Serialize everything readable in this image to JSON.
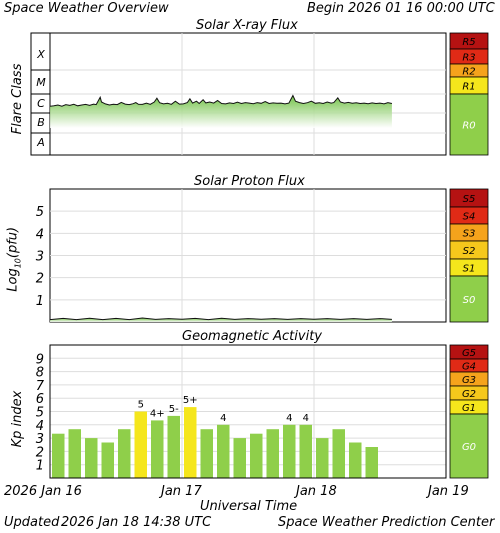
{
  "header": {
    "title": "Space Weather Overview",
    "begin_label": "Begin",
    "begin_value": "2026 01 16 00:00 UTC"
  },
  "footer": {
    "updated_label": "Updated",
    "updated_value": "2026 Jan 18 14:38 UTC",
    "credit": "Space Weather Prediction Center"
  },
  "time_axis": {
    "label": "Universal Time",
    "ticks": [
      {
        "label": "2026 Jan 16",
        "day": 0
      },
      {
        "label": "Jan 17",
        "day": 1
      },
      {
        "label": "Jan 18",
        "day": 2
      },
      {
        "label": "Jan 19",
        "day": 3
      }
    ],
    "range_days": [
      0,
      3
    ]
  },
  "colors": {
    "green": "#8fcf4a",
    "yellow": "#f5e61c",
    "orange": "#f5a31c",
    "red": "#e02a16",
    "dark_red": "#b51212",
    "grid": "#dddddd"
  },
  "chart_data": [
    {
      "type": "area",
      "title": "Solar X-ray Flux",
      "ylabel": "Flare Class",
      "classes": [
        "A",
        "B",
        "C",
        "M",
        "X"
      ],
      "ylim_decades": [
        0,
        5
      ],
      "x_unit": "days since 2026-01-16 00:00 UTC",
      "points": [
        [
          0.0,
          2.35
        ],
        [
          0.03,
          2.38
        ],
        [
          0.06,
          2.42
        ],
        [
          0.09,
          2.36
        ],
        [
          0.12,
          2.44
        ],
        [
          0.15,
          2.4
        ],
        [
          0.18,
          2.46
        ],
        [
          0.21,
          2.38
        ],
        [
          0.24,
          2.42
        ],
        [
          0.27,
          2.45
        ],
        [
          0.3,
          2.4
        ],
        [
          0.33,
          2.47
        ],
        [
          0.35,
          2.44
        ],
        [
          0.38,
          2.83
        ],
        [
          0.39,
          2.58
        ],
        [
          0.42,
          2.48
        ],
        [
          0.45,
          2.42
        ],
        [
          0.48,
          2.46
        ],
        [
          0.51,
          2.44
        ],
        [
          0.54,
          2.56
        ],
        [
          0.57,
          2.47
        ],
        [
          0.6,
          2.44
        ],
        [
          0.63,
          2.49
        ],
        [
          0.65,
          2.55
        ],
        [
          0.67,
          2.46
        ],
        [
          0.7,
          2.45
        ],
        [
          0.73,
          2.52
        ],
        [
          0.76,
          2.46
        ],
        [
          0.79,
          2.58
        ],
        [
          0.81,
          2.78
        ],
        [
          0.83,
          2.54
        ],
        [
          0.86,
          2.48
        ],
        [
          0.89,
          2.51
        ],
        [
          0.92,
          2.46
        ],
        [
          0.95,
          2.62
        ],
        [
          0.98,
          2.47
        ],
        [
          1.01,
          2.48
        ],
        [
          1.04,
          2.55
        ],
        [
          1.06,
          2.75
        ],
        [
          1.08,
          2.52
        ],
        [
          1.11,
          2.62
        ],
        [
          1.13,
          2.5
        ],
        [
          1.16,
          2.7
        ],
        [
          1.18,
          2.53
        ],
        [
          1.21,
          2.58
        ],
        [
          1.24,
          2.52
        ],
        [
          1.27,
          2.66
        ],
        [
          1.3,
          2.5
        ],
        [
          1.33,
          2.48
        ],
        [
          1.36,
          2.53
        ],
        [
          1.39,
          2.5
        ],
        [
          1.42,
          2.57
        ],
        [
          1.45,
          2.5
        ],
        [
          1.48,
          2.55
        ],
        [
          1.51,
          2.52
        ],
        [
          1.54,
          2.49
        ],
        [
          1.57,
          2.55
        ],
        [
          1.6,
          2.51
        ],
        [
          1.63,
          2.6
        ],
        [
          1.66,
          2.5
        ],
        [
          1.69,
          2.53
        ],
        [
          1.72,
          2.51
        ],
        [
          1.75,
          2.52
        ],
        [
          1.78,
          2.48
        ],
        [
          1.81,
          2.52
        ],
        [
          1.84,
          2.92
        ],
        [
          1.86,
          2.62
        ],
        [
          1.89,
          2.55
        ],
        [
          1.92,
          2.5
        ],
        [
          1.95,
          2.54
        ],
        [
          1.98,
          2.62
        ],
        [
          2.01,
          2.51
        ],
        [
          2.04,
          2.54
        ],
        [
          2.07,
          2.5
        ],
        [
          2.1,
          2.58
        ],
        [
          2.13,
          2.52
        ],
        [
          2.15,
          2.55
        ],
        [
          2.18,
          2.8
        ],
        [
          2.2,
          2.58
        ],
        [
          2.23,
          2.52
        ],
        [
          2.26,
          2.56
        ],
        [
          2.29,
          2.51
        ],
        [
          2.32,
          2.54
        ],
        [
          2.35,
          2.5
        ],
        [
          2.38,
          2.52
        ],
        [
          2.41,
          2.49
        ],
        [
          2.44,
          2.53
        ],
        [
          2.47,
          2.5
        ],
        [
          2.5,
          2.52
        ],
        [
          2.53,
          2.48
        ],
        [
          2.56,
          2.55
        ],
        [
          2.59,
          2.5
        ]
      ],
      "scale": [
        {
          "label": "R5",
          "color": "#b51212"
        },
        {
          "label": "R3",
          "color": "#e02a16"
        },
        {
          "label": "R2",
          "color": "#f5a31c"
        },
        {
          "label": "R1",
          "color": "#f5e61c"
        },
        {
          "label": "R0",
          "color": "#8fcf4a"
        }
      ]
    },
    {
      "type": "area",
      "title": "Solar Proton Flux",
      "ylabel": "Log",
      "ylabel_sub": "10",
      "ylabel_suffix": "(pfu)",
      "ylim": [
        0,
        6
      ],
      "y_ticks": [
        1,
        2,
        3,
        4,
        5
      ],
      "points": [
        [
          0.0,
          0.12
        ],
        [
          0.1,
          0.13
        ],
        [
          0.2,
          0.12
        ],
        [
          0.3,
          0.14
        ],
        [
          0.4,
          0.12
        ],
        [
          0.5,
          0.13
        ],
        [
          0.6,
          0.12
        ],
        [
          0.7,
          0.15
        ],
        [
          0.8,
          0.13
        ],
        [
          0.9,
          0.12
        ],
        [
          1.0,
          0.14
        ],
        [
          1.1,
          0.13
        ],
        [
          1.2,
          0.12
        ],
        [
          1.3,
          0.14
        ],
        [
          1.4,
          0.13
        ],
        [
          1.5,
          0.12
        ],
        [
          1.6,
          0.14
        ],
        [
          1.7,
          0.12
        ],
        [
          1.8,
          0.13
        ],
        [
          1.9,
          0.12
        ],
        [
          2.0,
          0.14
        ],
        [
          2.1,
          0.12
        ],
        [
          2.2,
          0.13
        ],
        [
          2.3,
          0.12
        ],
        [
          2.4,
          0.13
        ],
        [
          2.5,
          0.12
        ],
        [
          2.59,
          0.13
        ]
      ],
      "scale": [
        {
          "label": "S5",
          "color": "#b51212"
        },
        {
          "label": "S4",
          "color": "#e02a16"
        },
        {
          "label": "S3",
          "color": "#f5a31c"
        },
        {
          "label": "S2",
          "color": "#f5c81c"
        },
        {
          "label": "S1",
          "color": "#f5e61c"
        },
        {
          "label": "S0",
          "color": "#8fcf4a"
        }
      ]
    },
    {
      "type": "bar",
      "title": "Geomagnetic Activity",
      "ylabel": "Kp index",
      "ylim": [
        0,
        10
      ],
      "y_ticks": [
        1,
        2,
        3,
        4,
        5,
        6,
        7,
        8,
        9
      ],
      "bar_interval_hours": 3,
      "values": [
        3.33,
        3.67,
        3.0,
        2.67,
        3.67,
        5.0,
        4.33,
        4.67,
        5.33,
        3.67,
        4.0,
        3.0,
        3.33,
        3.67,
        4.0,
        4.0,
        3.0,
        3.67,
        2.67,
        2.33
      ],
      "labels": [
        "",
        "",
        "",
        "",
        "",
        "5",
        "4+",
        "5-",
        "5+",
        "",
        "4",
        "",
        "",
        "",
        "4",
        "4",
        "",
        "",
        "",
        ""
      ],
      "bar_colors": [
        "green",
        "green",
        "green",
        "green",
        "green",
        "yellow",
        "green",
        "green",
        "yellow",
        "green",
        "green",
        "green",
        "green",
        "green",
        "green",
        "green",
        "green",
        "green",
        "green",
        "green"
      ],
      "scale": [
        {
          "label": "G5",
          "color": "#b51212"
        },
        {
          "label": "G4",
          "color": "#e02a16"
        },
        {
          "label": "G3",
          "color": "#f5a31c"
        },
        {
          "label": "G2",
          "color": "#f5c81c"
        },
        {
          "label": "G1",
          "color": "#f5e61c"
        },
        {
          "label": "G0",
          "color": "#8fcf4a"
        }
      ]
    }
  ]
}
